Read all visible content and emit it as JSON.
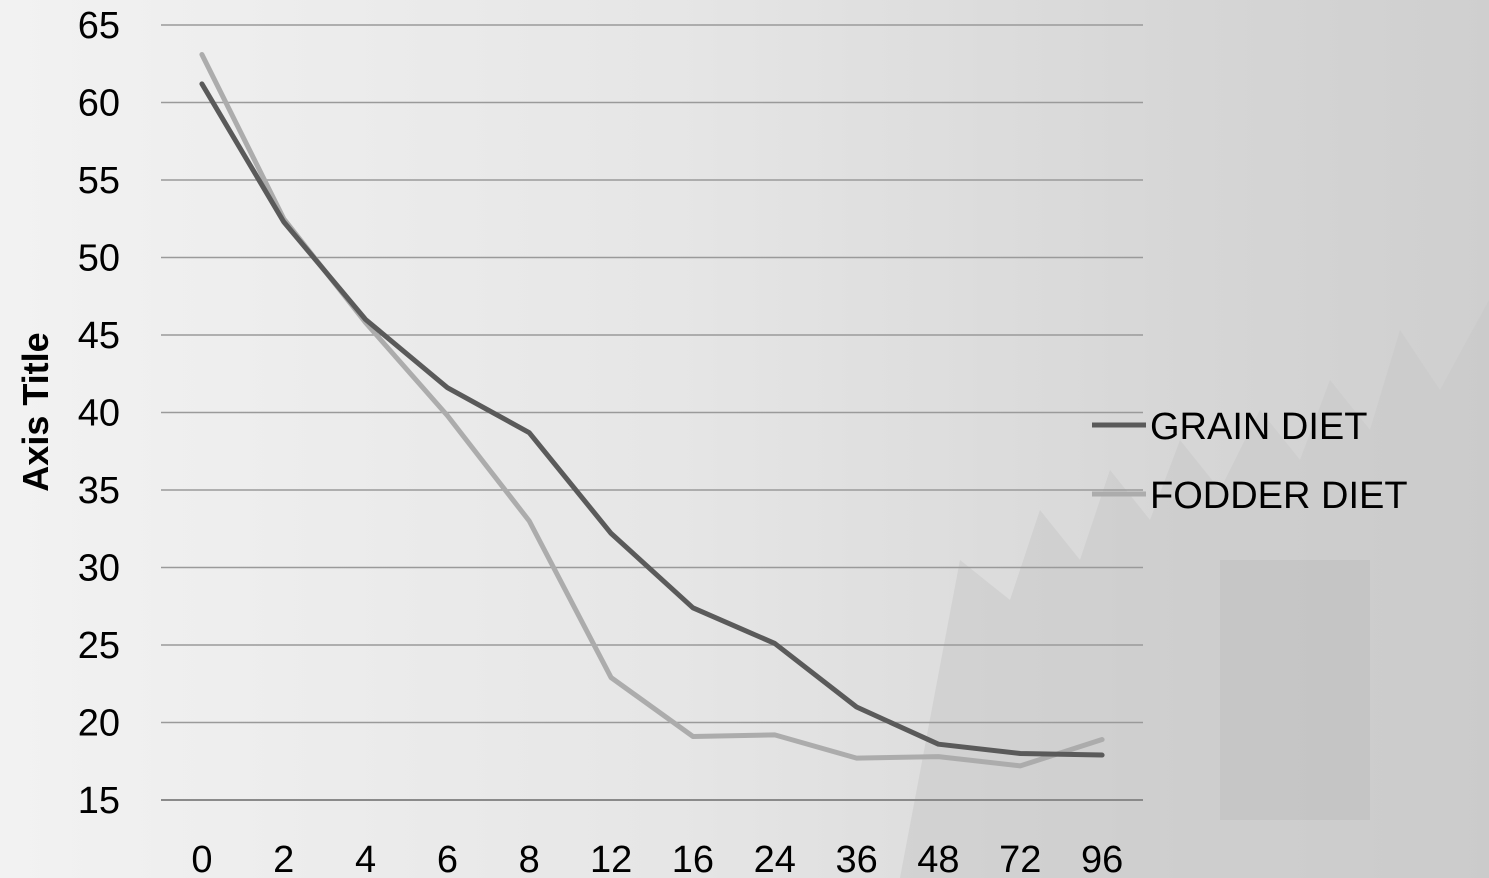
{
  "chart_data": {
    "type": "line",
    "title": "",
    "xlabel": "",
    "ylabel": "Axis Title",
    "categories": [
      "0",
      "2",
      "4",
      "6",
      "8",
      "12",
      "16",
      "24",
      "36",
      "48",
      "72",
      "96"
    ],
    "yticks": [
      "15",
      "20",
      "25",
      "30",
      "35",
      "40",
      "45",
      "50",
      "55",
      "60",
      "65"
    ],
    "ylim": [
      15,
      65
    ],
    "grid": true,
    "legend_position": "right",
    "series": [
      {
        "name": "GRAIN DIET",
        "color": "#5a5a5a",
        "values": [
          61.2,
          52.3,
          46.0,
          41.6,
          38.7,
          32.2,
          27.4,
          25.1,
          21.0,
          18.6,
          18.0,
          17.9
        ]
      },
      {
        "name": "FODDER DIET",
        "color": "#acacac",
        "values": [
          63.1,
          52.5,
          45.8,
          39.8,
          33.0,
          22.9,
          19.1,
          19.2,
          17.7,
          17.8,
          17.2,
          18.9
        ]
      }
    ]
  }
}
